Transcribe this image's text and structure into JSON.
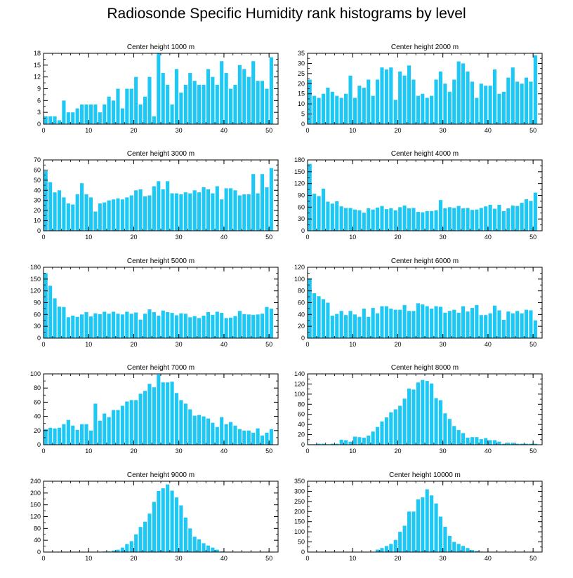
{
  "title": "Radiosonde Specific Humidity rank histograms by level",
  "bar_color": "#1ec8f5",
  "chart_data": [
    {
      "type": "bar",
      "title": "Center height 1000 m",
      "x_start": 0,
      "xlim": [
        0,
        52
      ],
      "ylim": [
        0,
        18
      ],
      "xticks": [
        0,
        10,
        20,
        30,
        40,
        50
      ],
      "yticks": [
        0,
        3,
        6,
        9,
        12,
        15,
        18
      ],
      "values": [
        2,
        2,
        2,
        1,
        6,
        3,
        3,
        4,
        5,
        5,
        5,
        5,
        3,
        5,
        7,
        6,
        9,
        4,
        9,
        9,
        12,
        5,
        7,
        12,
        2,
        18,
        13,
        10,
        5,
        14,
        8,
        10,
        13,
        11,
        10,
        10,
        14,
        12,
        10,
        16,
        13,
        9,
        10,
        15,
        14,
        12,
        16,
        11,
        11,
        9,
        17
      ]
    },
    {
      "type": "bar",
      "title": "Center height 2000 m",
      "x_start": 0,
      "xlim": [
        0,
        52
      ],
      "ylim": [
        0,
        35
      ],
      "xticks": [
        0,
        10,
        20,
        30,
        40,
        50
      ],
      "yticks": [
        0,
        5,
        10,
        15,
        20,
        25,
        30,
        35
      ],
      "values": [
        22,
        14,
        13,
        15,
        18,
        16,
        14,
        13,
        15,
        24,
        13,
        19,
        18,
        22,
        14,
        22,
        28,
        27,
        28,
        12,
        26,
        24,
        29,
        22,
        14,
        15,
        13,
        14,
        22,
        26,
        20,
        16,
        22,
        31,
        30,
        26,
        21,
        13,
        20,
        19,
        19,
        27,
        15,
        16,
        23,
        28,
        21,
        20,
        23,
        21,
        34
      ]
    },
    {
      "type": "bar",
      "title": "Center height 3000 m",
      "x_start": 0,
      "xlim": [
        0,
        52
      ],
      "ylim": [
        0,
        70
      ],
      "xticks": [
        0,
        10,
        20,
        30,
        40,
        50
      ],
      "yticks": [
        0,
        10,
        20,
        30,
        40,
        50,
        60,
        70
      ],
      "values": [
        59,
        48,
        38,
        40,
        33,
        27,
        26,
        36,
        47,
        36,
        33,
        19,
        27,
        28,
        30,
        31,
        32,
        31,
        33,
        35,
        40,
        41,
        34,
        35,
        44,
        49,
        41,
        49,
        37,
        37,
        36,
        38,
        37,
        40,
        38,
        43,
        41,
        37,
        44,
        31,
        42,
        42,
        40,
        35,
        36,
        36,
        56,
        37,
        56,
        43,
        62
      ]
    },
    {
      "type": "bar",
      "title": "Center height 4000 m",
      "x_start": 0,
      "xlim": [
        0,
        52
      ],
      "ylim": [
        0,
        180
      ],
      "xticks": [
        0,
        10,
        20,
        30,
        40,
        50
      ],
      "yticks": [
        0,
        30,
        60,
        90,
        120,
        150,
        180
      ],
      "values": [
        170,
        94,
        88,
        107,
        74,
        69,
        75,
        62,
        58,
        58,
        54,
        52,
        46,
        57,
        54,
        59,
        63,
        55,
        57,
        52,
        60,
        64,
        57,
        58,
        48,
        47,
        50,
        50,
        52,
        78,
        57,
        60,
        58,
        63,
        57,
        58,
        53,
        54,
        58,
        62,
        66,
        56,
        66,
        50,
        57,
        64,
        63,
        71,
        80,
        76,
        97
      ]
    },
    {
      "type": "bar",
      "title": "Center height 5000 m",
      "x_start": 0,
      "xlim": [
        0,
        52
      ],
      "ylim": [
        0,
        180
      ],
      "xticks": [
        0,
        10,
        20,
        30,
        40,
        50
      ],
      "yticks": [
        0,
        30,
        60,
        90,
        120,
        150,
        180
      ],
      "values": [
        165,
        133,
        101,
        80,
        79,
        53,
        57,
        54,
        60,
        66,
        55,
        63,
        61,
        67,
        62,
        67,
        62,
        60,
        67,
        62,
        65,
        47,
        62,
        73,
        66,
        57,
        70,
        66,
        64,
        58,
        63,
        62,
        53,
        56,
        51,
        57,
        66,
        59,
        67,
        64,
        51,
        52,
        56,
        69,
        61,
        60,
        59,
        60,
        62,
        79,
        75
      ]
    },
    {
      "type": "bar",
      "title": "Center height 6000 m",
      "x_start": 0,
      "xlim": [
        0,
        52
      ],
      "ylim": [
        0,
        120
      ],
      "xticks": [
        0,
        10,
        20,
        30,
        40,
        50
      ],
      "yticks": [
        0,
        20,
        40,
        60,
        80,
        100,
        120
      ],
      "values": [
        101,
        76,
        71,
        66,
        60,
        38,
        41,
        46,
        39,
        46,
        40,
        36,
        50,
        36,
        51,
        42,
        54,
        54,
        50,
        48,
        48,
        56,
        46,
        46,
        59,
        57,
        54,
        50,
        54,
        53,
        43,
        46,
        48,
        43,
        54,
        45,
        51,
        56,
        39,
        39,
        42,
        55,
        47,
        31,
        45,
        42,
        46,
        42,
        48,
        47,
        30
      ]
    },
    {
      "type": "bar",
      "title": "Center height 7000 m",
      "x_start": 0,
      "xlim": [
        0,
        52
      ],
      "ylim": [
        0,
        100
      ],
      "xticks": [
        0,
        10,
        20,
        30,
        40,
        50
      ],
      "yticks": [
        0,
        20,
        40,
        60,
        80,
        100
      ],
      "values": [
        22,
        24,
        23,
        24,
        29,
        35,
        27,
        21,
        29,
        29,
        20,
        58,
        34,
        44,
        39,
        49,
        49,
        55,
        61,
        63,
        63,
        72,
        76,
        86,
        81,
        99,
        88,
        88,
        89,
        73,
        63,
        58,
        50,
        41,
        42,
        40,
        37,
        31,
        25,
        39,
        29,
        32,
        27,
        22,
        20,
        20,
        17,
        23,
        13,
        17,
        22
      ]
    },
    {
      "type": "bar",
      "title": "Center height 8000 m",
      "x_start": 0,
      "xlim": [
        0,
        52
      ],
      "ylim": [
        0,
        140
      ],
      "xticks": [
        0,
        10,
        20,
        30,
        40,
        50
      ],
      "yticks": [
        0,
        20,
        40,
        60,
        80,
        100,
        120,
        140
      ],
      "values": [
        1,
        1,
        2,
        2,
        1,
        2,
        2,
        10,
        9,
        6,
        16,
        15,
        14,
        18,
        26,
        35,
        46,
        54,
        64,
        70,
        77,
        91,
        111,
        109,
        123,
        128,
        126,
        121,
        92,
        88,
        62,
        51,
        37,
        29,
        23,
        14,
        15,
        15,
        11,
        13,
        9,
        9,
        6,
        2,
        4,
        4,
        2,
        2,
        2,
        2,
        2
      ]
    },
    {
      "type": "bar",
      "title": "Center height 9000 m",
      "x_start": 0,
      "xlim": [
        0,
        52
      ],
      "ylim": [
        0,
        240
      ],
      "xticks": [
        0,
        10,
        20,
        30,
        40,
        50
      ],
      "yticks": [
        0,
        40,
        80,
        120,
        160,
        200,
        240
      ],
      "values": [
        0,
        0,
        0,
        0,
        0,
        0,
        0,
        0,
        0,
        0,
        0,
        0,
        0,
        2,
        2,
        5,
        8,
        15,
        27,
        37,
        60,
        85,
        103,
        130,
        170,
        207,
        216,
        229,
        208,
        185,
        158,
        117,
        80,
        52,
        43,
        30,
        22,
        15,
        8,
        2,
        0,
        0,
        0,
        0,
        0,
        0,
        0,
        0,
        0,
        0,
        0
      ]
    },
    {
      "type": "bar",
      "title": "Center height 10000 m",
      "x_start": 0,
      "xlim": [
        0,
        52
      ],
      "ylim": [
        0,
        350
      ],
      "xticks": [
        0,
        10,
        20,
        30,
        40,
        50
      ],
      "yticks": [
        0,
        50,
        100,
        150,
        200,
        250,
        300,
        350
      ],
      "values": [
        0,
        0,
        0,
        0,
        0,
        0,
        0,
        0,
        0,
        0,
        0,
        0,
        0,
        0,
        0,
        12,
        20,
        30,
        40,
        60,
        100,
        130,
        200,
        200,
        260,
        270,
        310,
        280,
        240,
        175,
        125,
        80,
        50,
        40,
        30,
        20,
        10,
        5,
        2,
        0,
        0,
        0,
        0,
        0,
        0,
        0,
        0,
        0,
        0,
        0,
        0
      ]
    }
  ]
}
